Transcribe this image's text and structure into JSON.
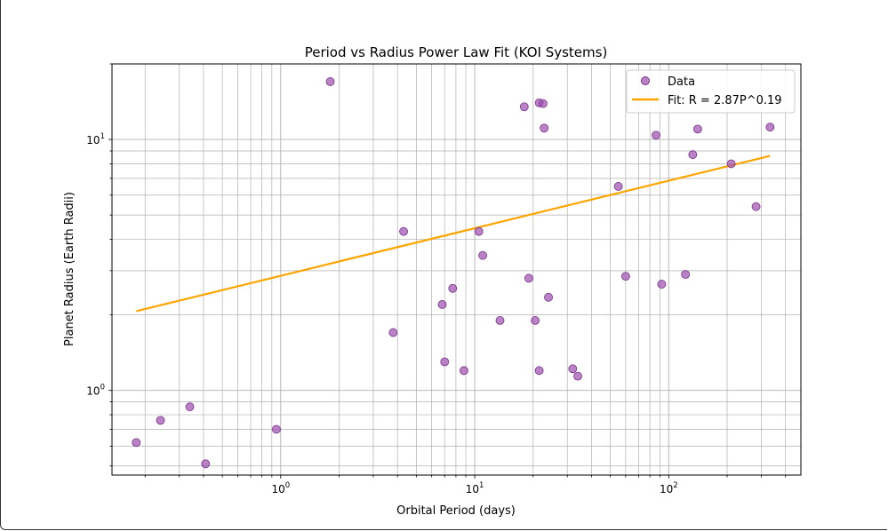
{
  "chart_data": {
    "type": "scatter",
    "title": "Period vs Radius Power Law Fit (KOI Systems)",
    "xlabel": "Orbital Period (days)",
    "ylabel": "Planet Radius (Earth Radii)",
    "xscale": "log",
    "yscale": "log",
    "xlim": [
      0.135,
      480
    ],
    "ylim": [
      0.46,
      20
    ],
    "grid": "on (major and minor)",
    "legend_position": "top-right",
    "x_tick_labels": [
      {
        "value": 1,
        "base": "10",
        "exp": "0"
      },
      {
        "value": 10,
        "base": "10",
        "exp": "1"
      },
      {
        "value": 100,
        "base": "10",
        "exp": "2"
      }
    ],
    "y_tick_labels": [
      {
        "value": 1,
        "base": "10",
        "exp": "0"
      },
      {
        "value": 10,
        "base": "10",
        "exp": "1"
      }
    ],
    "series": [
      {
        "name": "Data",
        "kind": "scatter",
        "color": "#9b4fad",
        "points": [
          [
            0.18,
            0.62
          ],
          [
            0.24,
            0.76
          ],
          [
            0.34,
            0.86
          ],
          [
            0.41,
            0.51
          ],
          [
            0.95,
            0.7
          ],
          [
            1.8,
            17.0
          ],
          [
            3.8,
            1.7
          ],
          [
            4.3,
            4.3
          ],
          [
            6.8,
            2.2
          ],
          [
            7.0,
            1.3
          ],
          [
            7.7,
            2.55
          ],
          [
            8.8,
            1.2
          ],
          [
            10.5,
            4.3
          ],
          [
            11.0,
            3.45
          ],
          [
            13.5,
            1.9
          ],
          [
            18.0,
            13.5
          ],
          [
            19.0,
            2.8
          ],
          [
            20.5,
            1.9
          ],
          [
            21.5,
            14.0
          ],
          [
            21.5,
            1.2
          ],
          [
            22.5,
            13.9
          ],
          [
            22.8,
            11.1
          ],
          [
            24.0,
            2.35
          ],
          [
            32.0,
            1.22
          ],
          [
            34.0,
            1.14
          ],
          [
            55.0,
            6.5
          ],
          [
            60.0,
            2.85
          ],
          [
            86.0,
            10.4
          ],
          [
            92.0,
            2.65
          ],
          [
            122.0,
            2.9
          ],
          [
            133.0,
            8.7
          ],
          [
            141.0,
            11.0
          ],
          [
            210.0,
            8.0
          ],
          [
            282.0,
            5.4
          ],
          [
            333.0,
            11.2
          ]
        ]
      },
      {
        "name": "Fit: R = 2.87P^0.19",
        "kind": "line",
        "color": "#ffa500",
        "points": [
          [
            0.18,
            2.07
          ],
          [
            333.0,
            8.6
          ]
        ]
      }
    ]
  }
}
